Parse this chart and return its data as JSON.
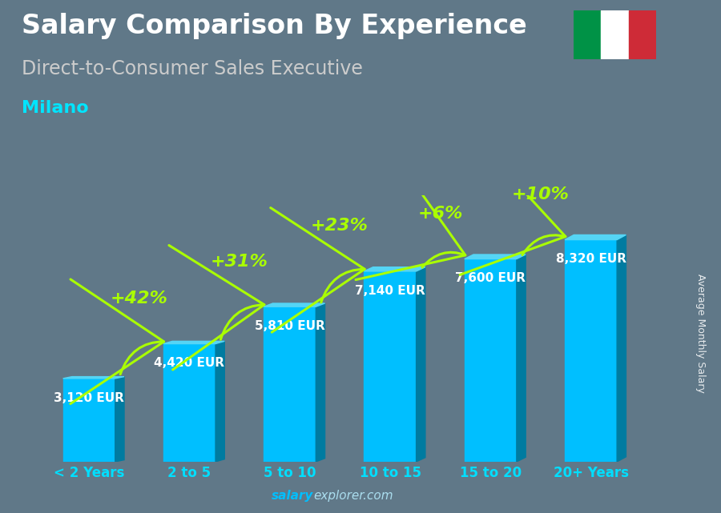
{
  "title": "Salary Comparison By Experience",
  "subtitle": "Direct-to-Consumer Sales Executive",
  "city": "Milano",
  "watermark": "salaryexplorer.com",
  "ylabel_rotated": "Average Monthly Salary",
  "categories": [
    "< 2 Years",
    "2 to 5",
    "5 to 10",
    "10 to 15",
    "15 to 20",
    "20+ Years"
  ],
  "values": [
    3120,
    4420,
    5810,
    7140,
    7600,
    8320
  ],
  "value_labels": [
    "3,120 EUR",
    "4,420 EUR",
    "5,810 EUR",
    "7,140 EUR",
    "7,600 EUR",
    "8,320 EUR"
  ],
  "pct_changes": [
    "+42%",
    "+31%",
    "+23%",
    "+6%",
    "+10%"
  ],
  "bar_color_face": "#00BFFF",
  "bar_color_dark": "#007BA0",
  "bar_color_top": "#55D5F5",
  "background_color": "#607888",
  "title_color": "#ffffff",
  "subtitle_color": "#cccccc",
  "city_color": "#00E5FF",
  "label_color": "#ffffff",
  "pct_color": "#AAFF00",
  "tick_color": "#00DFFF",
  "watermark_bold": "#00BFFF",
  "watermark_normal": "#aaddee",
  "flag_green": "#009246",
  "flag_white": "#ffffff",
  "flag_red": "#ce2b37",
  "title_fontsize": 24,
  "subtitle_fontsize": 17,
  "city_fontsize": 16,
  "value_fontsize": 11,
  "pct_fontsize": 16,
  "cat_fontsize": 12,
  "ylim": [
    0,
    10000
  ]
}
